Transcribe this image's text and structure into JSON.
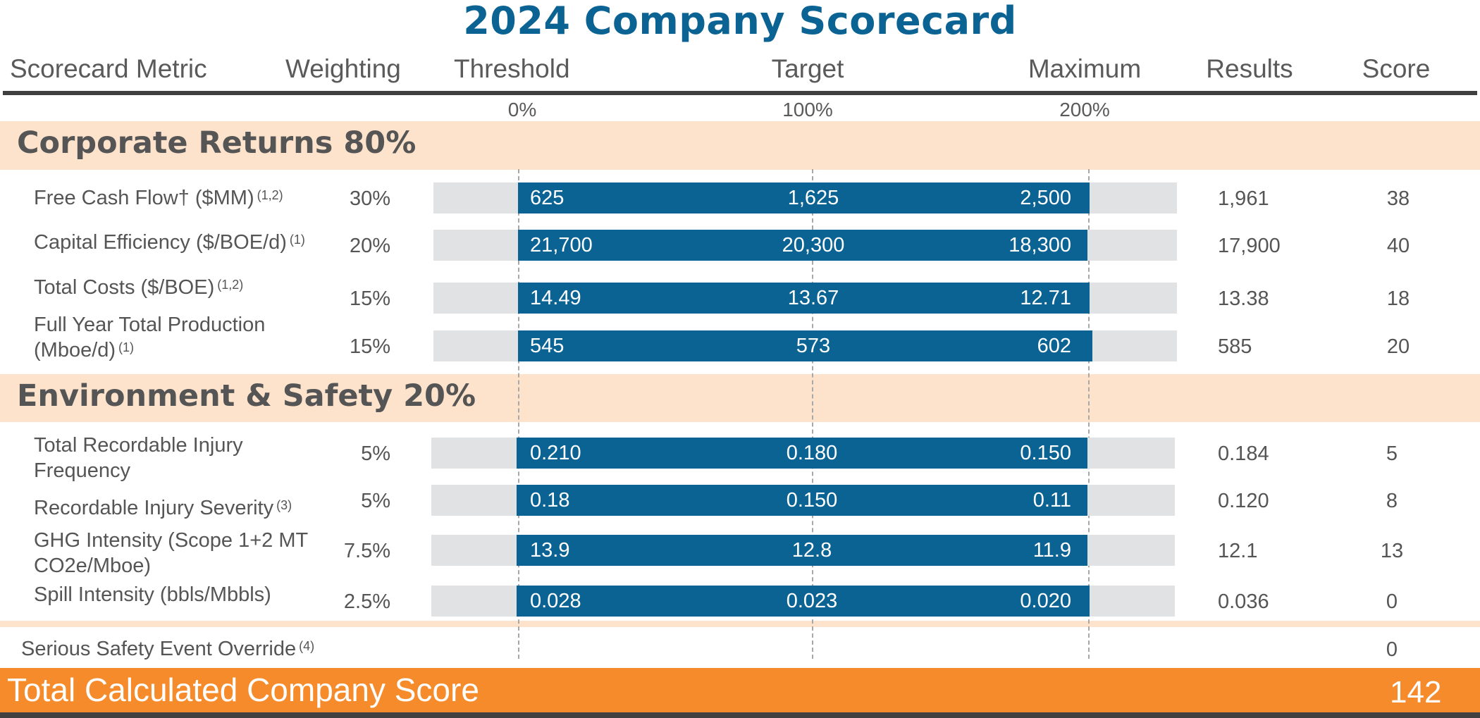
{
  "title": "2024 Company Scorecard",
  "columns": {
    "metric": "Scorecard Metric",
    "weighting": "Weighting",
    "threshold": "Threshold",
    "target": "Target",
    "maximum": "Maximum",
    "results": "Results",
    "score": "Score"
  },
  "payout_scale": [
    "0%",
    "100%",
    "200%"
  ],
  "sections": [
    {
      "title": "Corporate Returns 80%",
      "rows": [
        {
          "metric": "Free Cash Flow† ($MM)",
          "note": "(1,2)",
          "weight": "30%",
          "threshold": "625",
          "target": "1,625",
          "maximum": "2,500",
          "result": "1,961",
          "score": "38"
        },
        {
          "metric": "Capital Efficiency ($/BOE/d)",
          "note": "(1)",
          "weight": "20%",
          "threshold": "21,700",
          "target": "20,300",
          "maximum": "18,300",
          "result": "17,900",
          "score": "40"
        },
        {
          "metric": "Total Costs ($/BOE)",
          "note": "(1,2)",
          "weight": "15%",
          "threshold": "14.49",
          "target": "13.67",
          "maximum": "12.71",
          "result": "13.38",
          "score": "18"
        },
        {
          "metric": "Full Year Total Production",
          "metric_line2": "(Mboe/d)",
          "note": "(1)",
          "weight": "15%",
          "threshold": "545",
          "target": "573",
          "maximum": "602",
          "result": "585",
          "score": "20"
        }
      ]
    },
    {
      "title": "Environment & Safety 20%",
      "rows": [
        {
          "metric": "Total Recordable Injury",
          "metric_line2": "Frequency",
          "weight": "5%",
          "threshold": "0.210",
          "target": "0.180",
          "maximum": "0.150",
          "result": "0.184",
          "score": "5"
        },
        {
          "metric": "Recordable Injury Severity",
          "note": "(3)",
          "weight": "5%",
          "threshold": "0.18",
          "target": "0.150",
          "maximum": "0.11",
          "result": "0.120",
          "score": "8"
        },
        {
          "metric": "GHG Intensity (Scope 1+2 MT",
          "metric_line2": "CO2e/Mboe)",
          "weight": "7.5%",
          "threshold": "13.9",
          "target": "12.8",
          "maximum": "11.9",
          "result": "12.1",
          "score": "13"
        },
        {
          "metric": "Spill Intensity (bbls/Mbbls)",
          "weight": "2.5%",
          "threshold": "0.028",
          "target": "0.023",
          "maximum": "0.020",
          "result": "0.036",
          "score": "0"
        }
      ]
    }
  ],
  "override": {
    "label": "Serious Safety Event Override",
    "note": "(4)",
    "score": "0"
  },
  "total": {
    "label": "Total Calculated Company Score",
    "score": "142"
  },
  "colors": {
    "accent_blue": "#0b6394",
    "section_band": "#fde3cc",
    "total_orange": "#f68b2c",
    "track_gray": "#e1e2e4"
  }
}
